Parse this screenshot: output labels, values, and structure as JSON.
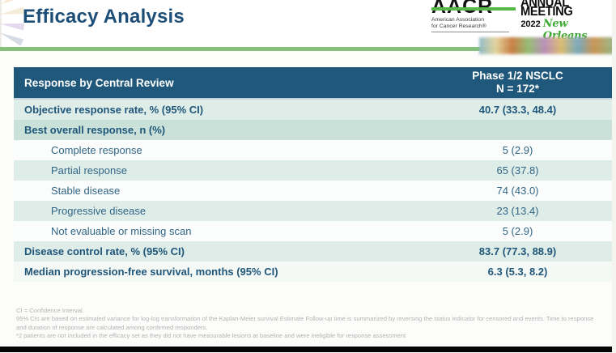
{
  "slide": {
    "title": "Efficacy Analysis"
  },
  "logo": {
    "org_abbrev": "AACR",
    "org_name_line1": "American Association",
    "org_name_line2": "for Cancer Research®",
    "event_line1": "ANNUAL",
    "event_line2": "MEETING",
    "event_year": "2022",
    "event_city": "New Orleans"
  },
  "table": {
    "header": {
      "col1": "Response by Central Review",
      "col2_line1": "Phase 1/2 NSCLC",
      "col2_line2": "N = 172*"
    },
    "rows": [
      {
        "label": "Objective response rate, % (95% CI)",
        "value": "40.7 (33.3, 48.4)"
      },
      {
        "label": "Best overall response, n (%)",
        "value": ""
      },
      {
        "label": "Complete response",
        "value": "5 (2.9)"
      },
      {
        "label": "Partial response",
        "value": "65 (37.8)"
      },
      {
        "label": "Stable disease",
        "value": "74 (43.0)"
      },
      {
        "label": "Progressive disease",
        "value": "23 (13.4)"
      },
      {
        "label": "Not evaluable or missing scan",
        "value": "5 (2.9)"
      },
      {
        "label": "Disease control rate, % (95% CI)",
        "value": "83.7 (77.3, 88.9)"
      },
      {
        "label": "Median progression-free survival, months (95% CI)",
        "value": "6.3 (5.3, 8.2)"
      }
    ]
  },
  "footnotes": [
    "CI = Confidence Interval.",
    "95% CIs are based on estimated variance for log-log transformation of the Kaplan-Meier survival Estimate Follow-up time is summarized by reversing the status indicator for censored and events. Time to response and duration of response are calculated among confirmed responders.",
    "*2 patients are not included in the efficacy set as they did not have measurable lesions at baseline and were ineligible for response assessment"
  ],
  "colors": {
    "header_blue": "#20587B",
    "row_mint": "#DFEDE9",
    "row_mint_dark": "#C9E1D8",
    "accent_green": "#85C17B",
    "title_navy": "#1D4E78",
    "aacr_green": "#56B947",
    "footnote_gray": "#B3B3B3"
  }
}
